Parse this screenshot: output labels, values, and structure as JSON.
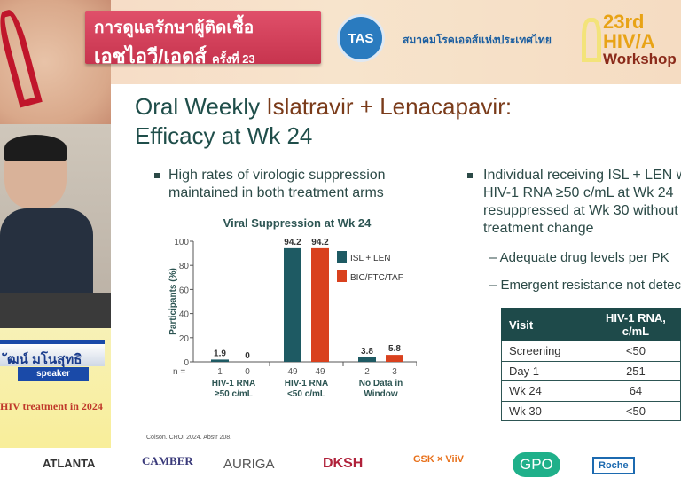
{
  "banner": {
    "title_line1": "การดูแลรักษาผู้ติดเชื้อ",
    "title_line2": "เอชไอวี/เอดส์",
    "title_edition": "ครั้งที่ 23",
    "society_logo": "TAS",
    "society_name": "สมาคมโรคเอดส์แห่งประเทศไทย",
    "workshop_num": "23rd HIV/A",
    "workshop_label": "Workshop"
  },
  "speaker": {
    "name": "ัฒน์ มโนสุทธิ",
    "role": "speaker",
    "topic": "HIV treatment in 2024"
  },
  "slide": {
    "title_a": "Oral Weekly ",
    "title_hl": "Islatravir + Lenacapavir:",
    "title_b": "Efficacy at Wk 24",
    "bullet1": "High rates of virologic suppression maintained in both treatment arms",
    "bullet2_lines": [
      "Individual receiving ISL + LEN with",
      "HIV-1 RNA ≥50 c/mL at Wk 24",
      "resuppressed at Wk 30 without",
      "treatment change"
    ],
    "sub1": "– Adequate drug levels per PK",
    "sub2": "– Emergent resistance not detected",
    "table": {
      "headers": [
        "Visit",
        "HIV-1 RNA, c/mL"
      ],
      "rows": [
        [
          "Screening",
          "<50"
        ],
        [
          "Day 1",
          "251"
        ],
        [
          "Wk 24",
          "64"
        ],
        [
          "Wk 30",
          "<50"
        ]
      ]
    },
    "citation": "Colson. CROI 2024. Abstr 208."
  },
  "chart_data": {
    "type": "bar",
    "title": "Viral Suppression at Wk 24",
    "ylabel": "Participants (%)",
    "ylim": [
      0,
      100
    ],
    "yticks": [
      0,
      20,
      40,
      60,
      80,
      100
    ],
    "categories": [
      "HIV-1 RNA\n≥50 c/mL",
      "HIV-1 RNA\n<50 c/mL",
      "No Data in\nWindow"
    ],
    "category_line1": [
      "HIV-1 RNA",
      "HIV-1 RNA",
      "No Data in"
    ],
    "category_line2": [
      "≥50 c/mL",
      "<50 c/mL",
      "Window"
    ],
    "n_label": "n =",
    "series": [
      {
        "name": "ISL + LEN",
        "color": "#1e5a63",
        "values": [
          1.9,
          94.2,
          3.8
        ],
        "labels": [
          "1.9",
          "94.2",
          "3.8"
        ],
        "n": [
          "1",
          "49",
          "2"
        ]
      },
      {
        "name": "BIC/FTC/TAF",
        "color": "#d9411e",
        "values": [
          0,
          94.2,
          5.8
        ],
        "labels": [
          "0",
          "94.2",
          "5.8"
        ],
        "n": [
          "0",
          "49",
          "3"
        ]
      }
    ],
    "legend_position": "top-right"
  },
  "sponsors": [
    "ATLANTA",
    "CAMBER",
    "AURIGA",
    "DKSH",
    "GSK × ViiV",
    "GPO",
    "Roche"
  ]
}
